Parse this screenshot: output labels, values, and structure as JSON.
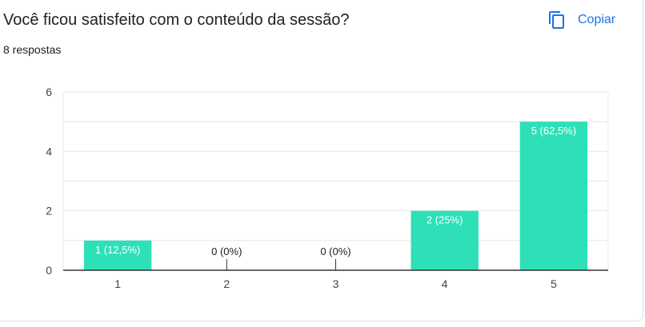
{
  "header": {
    "question": "Você ficou satisfeito com o conteúdo da sessão?",
    "responses": "8 respostas",
    "copy_label": "Copiar"
  },
  "colors": {
    "bar": "#2ee0b8",
    "accent": "#1a73e8",
    "grid": "#e8e8e8",
    "axis": "#333333"
  },
  "icons": {
    "copy": "copy-icon"
  },
  "chart_data": {
    "type": "bar",
    "categories": [
      "1",
      "2",
      "3",
      "4",
      "5"
    ],
    "values": [
      1,
      0,
      0,
      2,
      5
    ],
    "data_labels": [
      "1 (12,5%)",
      "0 (0%)",
      "0 (0%)",
      "2 (25%)",
      "5 (62,5%)"
    ],
    "ylim": [
      0,
      6
    ],
    "yticks": [
      0,
      2,
      4,
      6
    ],
    "grid": true
  }
}
